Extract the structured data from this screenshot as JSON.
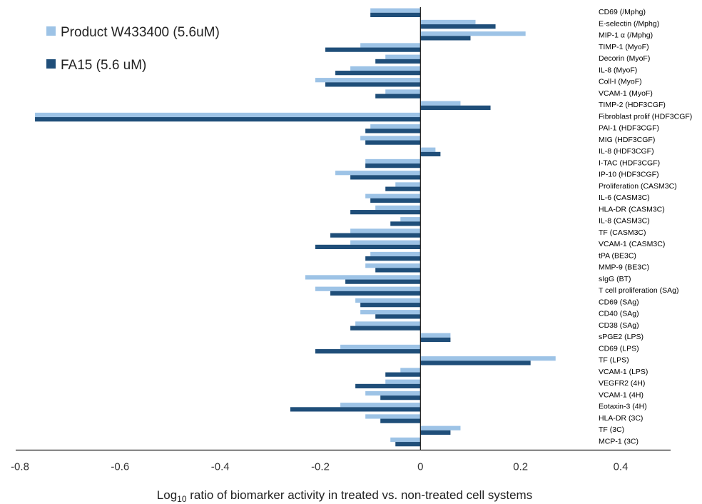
{
  "chart_data": {
    "type": "bar",
    "orientation": "horizontal",
    "xlabel_prefix": "Log",
    "xlabel_sub": "10",
    "xlabel_rest": " ratio of biomarker activity in treated vs. non-treated cell systems",
    "xlim": [
      -0.8,
      0.4
    ],
    "xticks": [
      "-0.8",
      "-0.6",
      "-0.4",
      "-0.2",
      "0",
      "0.2",
      "0.4"
    ],
    "grid": false,
    "legend_position": "top-left",
    "categories": [
      "CD69 (/Mphg)",
      "E-selectin (/Mphg)",
      "MIP-1 α (/Mphg)",
      "TIMP-1 (MyoF)",
      "Decorin (MyoF)",
      "IL-8 (MyoF)",
      "Coll-I (MyoF)",
      "VCAM-1 (MyoF)",
      "TIMP-2 (HDF3CGF)",
      "Fibroblast prolif (HDF3CGF)",
      "PAI-1 (HDF3CGF)",
      "MIG (HDF3CGF)",
      "IL-8 (HDF3CGF)",
      "I-TAC (HDF3CGF)",
      "IP-10 (HDF3CGF)",
      "Proliferation (CASM3C)",
      "IL-6 (CASM3C)",
      "HLA-DR (CASM3C)",
      "IL-8 (CASM3C)",
      "TF (CASM3C)",
      "VCAM-1 (CASM3C)",
      "tPA (BE3C)",
      "MMP-9 (BE3C)",
      "sIgG (BT)",
      "T cell proliferation (SAg)",
      "CD69 (SAg)",
      "CD40 (SAg)",
      "CD38 (SAg)",
      "sPGE2 (LPS)",
      "CD69 (LPS)",
      "TF (LPS)",
      "VCAM-1 (LPS)",
      "VEGFR2 (4H)",
      "VCAM-1 (4H)",
      "Eotaxin-3 (4H)",
      "HLA-DR (3C)",
      "TF (3C)",
      "MCP-1 (3C)"
    ],
    "series": [
      {
        "name": "Product W433400 (5.6uM)",
        "color": "#9dc3e6",
        "values": [
          -0.1,
          0.11,
          0.21,
          -0.12,
          -0.07,
          -0.14,
          -0.21,
          -0.07,
          0.08,
          -0.77,
          -0.1,
          -0.12,
          0.03,
          -0.11,
          -0.17,
          -0.05,
          -0.11,
          -0.09,
          -0.04,
          -0.14,
          -0.14,
          -0.1,
          -0.11,
          -0.23,
          -0.21,
          -0.13,
          -0.12,
          -0.13,
          0.06,
          -0.16,
          0.27,
          -0.04,
          -0.07,
          -0.11,
          -0.16,
          -0.11,
          0.08,
          -0.06
        ]
      },
      {
        "name": "FA15 (5.6 uM)",
        "color": "#1f4e79",
        "values": [
          -0.1,
          0.15,
          0.1,
          -0.19,
          -0.09,
          -0.17,
          -0.19,
          -0.09,
          0.14,
          -0.77,
          -0.11,
          -0.11,
          0.04,
          -0.11,
          -0.14,
          -0.07,
          -0.1,
          -0.14,
          -0.06,
          -0.18,
          -0.21,
          -0.11,
          -0.09,
          -0.15,
          -0.18,
          -0.12,
          -0.09,
          -0.14,
          0.06,
          -0.21,
          0.22,
          -0.07,
          -0.13,
          -0.08,
          -0.26,
          -0.08,
          0.06,
          -0.05
        ]
      }
    ]
  }
}
